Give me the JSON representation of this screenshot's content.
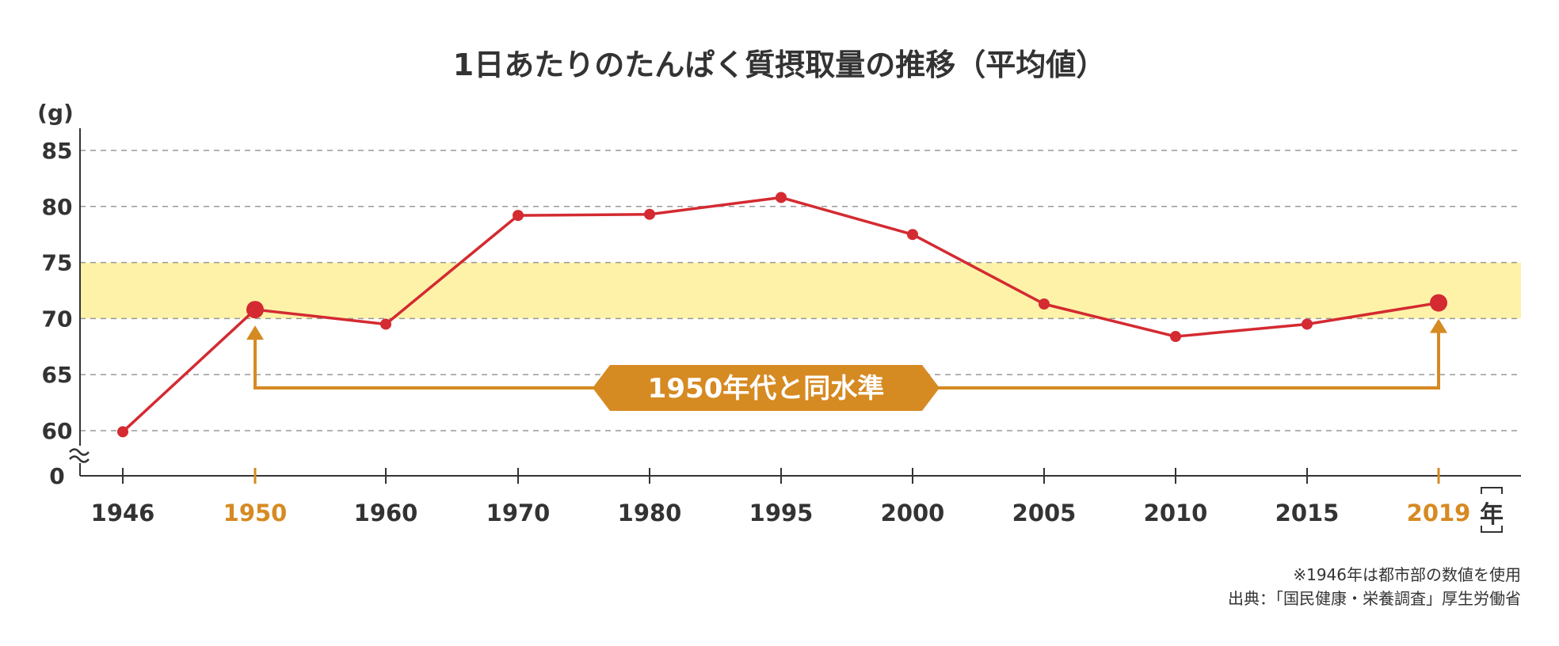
{
  "chart_data": {
    "type": "line",
    "title": "1日あたりのたんぱく質摂取量の推移（平均値）",
    "ylabel": "(g)",
    "xlabel": "年",
    "categories": [
      "1946",
      "1950",
      "1960",
      "1970",
      "1980",
      "1995",
      "2000",
      "2005",
      "2010",
      "2015",
      "2019"
    ],
    "series": [
      {
        "values": [
          59.9,
          70.8,
          69.5,
          79.2,
          79.3,
          80.8,
          77.5,
          71.3,
          68.4,
          69.5,
          71.4
        ]
      }
    ],
    "y_ticks": [
      "85",
      "80",
      "75",
      "70",
      "65",
      "60",
      "0"
    ],
    "ylim": [
      60,
      85
    ],
    "axis_break": true,
    "highlighted_categories": [
      "1950",
      "2019"
    ],
    "band": {
      "from": 70,
      "to": 75,
      "color": "#fdf2a8"
    },
    "grid": true,
    "annotation": "1950年代と同水準",
    "footnote": "※1946年は都市部の数値を使用",
    "source": "出典：「国民健康・栄養調査」厚生労働省"
  },
  "colors": {
    "line": "#d42a31",
    "highlight": "#d68a22",
    "text": "#333333",
    "grid": "#999999",
    "band": "#fdf2a8"
  }
}
